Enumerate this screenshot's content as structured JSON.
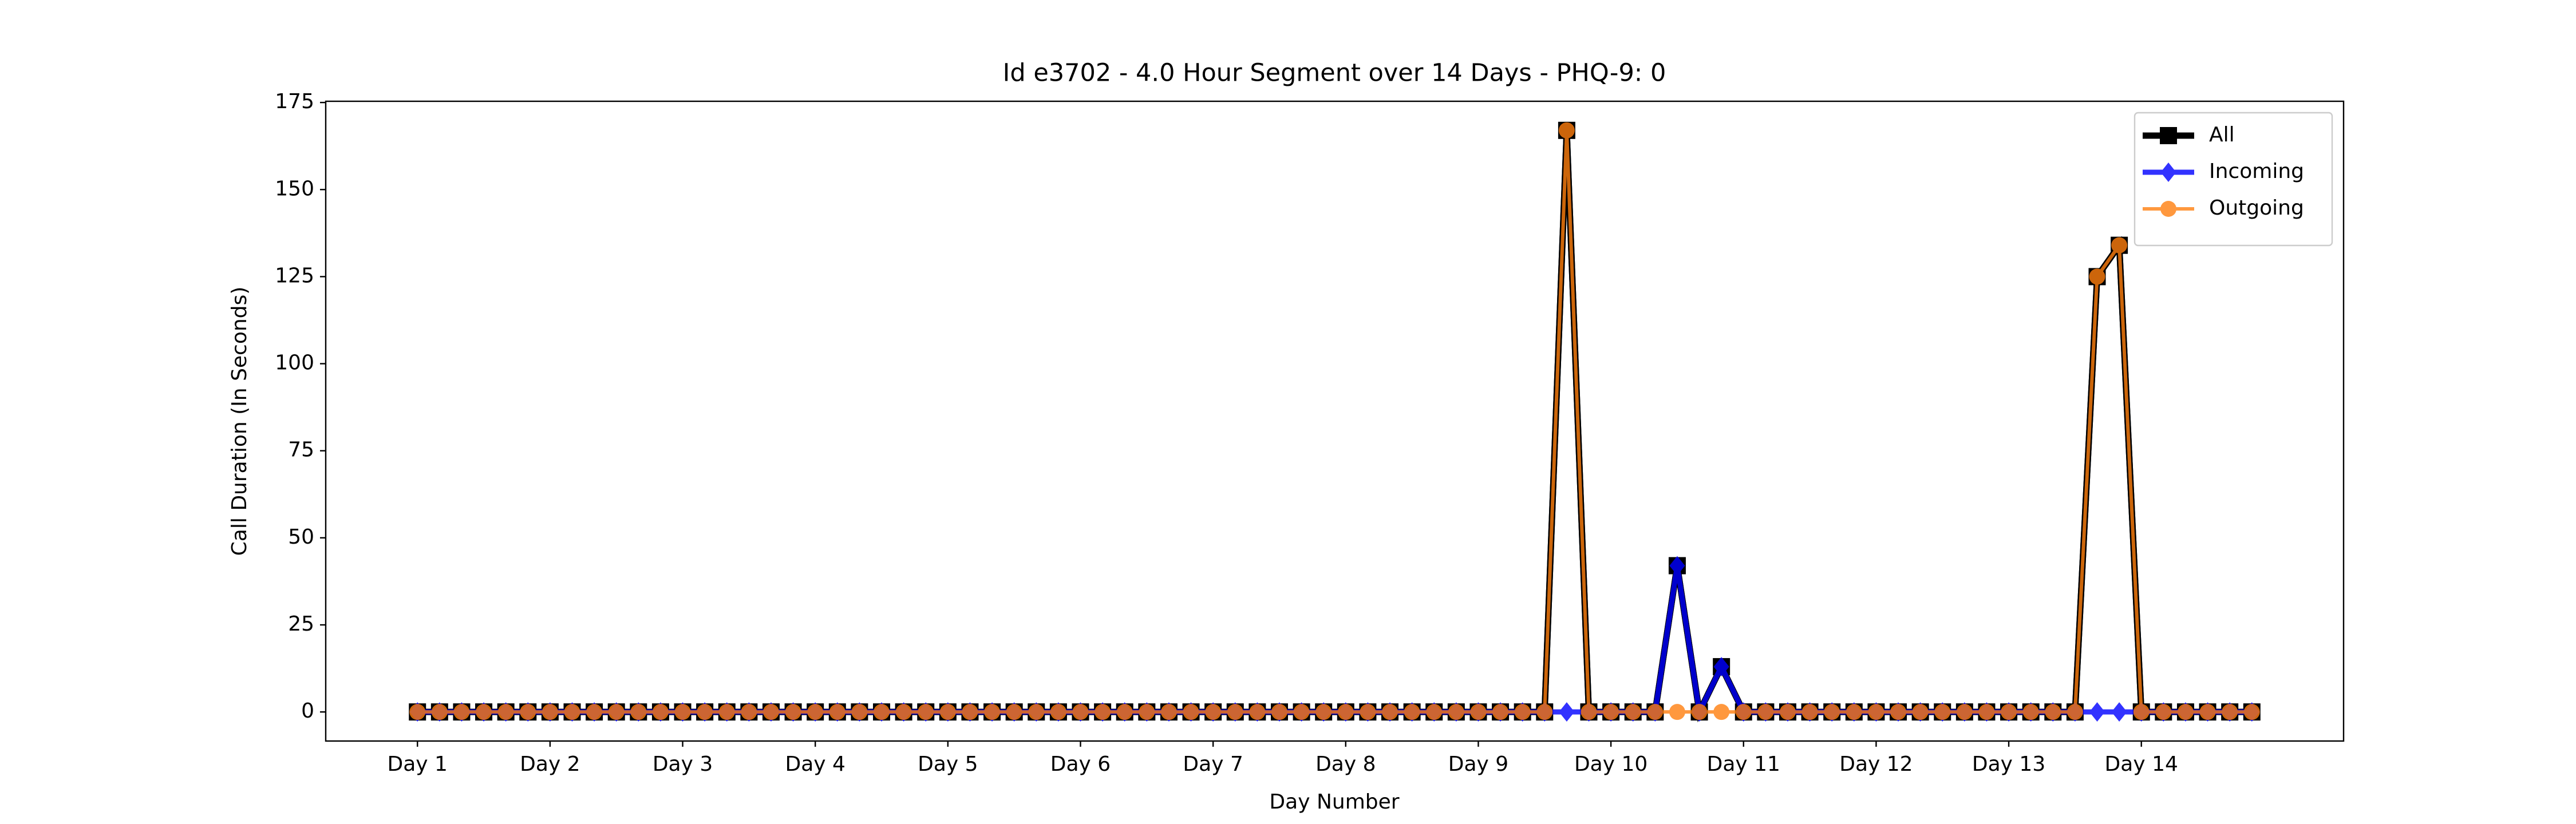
{
  "chart_data": {
    "type": "line",
    "title": "Id e3702 - 4.0 Hour Segment over 14 Days - PHQ-9: 0",
    "x_label": "Day Number",
    "y_label": "Call Duration (In Seconds)",
    "categories": [
      "Day 1",
      null,
      null,
      null,
      null,
      null,
      "Day 2",
      null,
      null,
      null,
      null,
      null,
      "Day 3",
      null,
      null,
      null,
      null,
      null,
      "Day 4",
      null,
      null,
      null,
      null,
      null,
      "Day 5",
      null,
      null,
      null,
      null,
      null,
      "Day 6",
      null,
      null,
      null,
      null,
      null,
      "Day 7",
      null,
      null,
      null,
      null,
      null,
      "Day 8",
      null,
      null,
      null,
      null,
      null,
      "Day 9",
      null,
      null,
      null,
      null,
      null,
      "Day 10",
      null,
      null,
      null,
      null,
      null,
      "Day 11",
      null,
      null,
      null,
      null,
      null,
      "Day 12",
      null,
      null,
      null,
      null,
      null,
      "Day 13",
      null,
      null,
      null,
      null,
      null,
      "Day 14",
      null,
      null,
      null,
      null,
      null
    ],
    "series": [
      {
        "name": "All",
        "color": "#000000",
        "marker": "square",
        "values": [
          0,
          0,
          0,
          0,
          0,
          0,
          0,
          0,
          0,
          0,
          0,
          0,
          0,
          0,
          0,
          0,
          0,
          0,
          0,
          0,
          0,
          0,
          0,
          0,
          0,
          0,
          0,
          0,
          0,
          0,
          0,
          0,
          0,
          0,
          0,
          0,
          0,
          0,
          0,
          0,
          0,
          0,
          0,
          0,
          0,
          0,
          0,
          0,
          0,
          0,
          0,
          0,
          167,
          0,
          0,
          0,
          0,
          42,
          0,
          13,
          0,
          0,
          0,
          0,
          0,
          0,
          0,
          0,
          0,
          0,
          0,
          0,
          0,
          0,
          0,
          0,
          125,
          134,
          0,
          0,
          0,
          0,
          0,
          0
        ]
      },
      {
        "name": "Incoming",
        "color": "#0000ff",
        "marker": "diamond",
        "values": [
          0,
          0,
          0,
          0,
          0,
          0,
          0,
          0,
          0,
          0,
          0,
          0,
          0,
          0,
          0,
          0,
          0,
          0,
          0,
          0,
          0,
          0,
          0,
          0,
          0,
          0,
          0,
          0,
          0,
          0,
          0,
          0,
          0,
          0,
          0,
          0,
          0,
          0,
          0,
          0,
          0,
          0,
          0,
          0,
          0,
          0,
          0,
          0,
          0,
          0,
          0,
          0,
          0,
          0,
          0,
          0,
          0,
          42,
          0,
          13,
          0,
          0,
          0,
          0,
          0,
          0,
          0,
          0,
          0,
          0,
          0,
          0,
          0,
          0,
          0,
          0,
          0,
          0,
          0,
          0,
          0,
          0,
          0,
          0
        ]
      },
      {
        "name": "Outgoing",
        "color": "#ff7f0e",
        "marker": "circle",
        "values": [
          0,
          0,
          0,
          0,
          0,
          0,
          0,
          0,
          0,
          0,
          0,
          0,
          0,
          0,
          0,
          0,
          0,
          0,
          0,
          0,
          0,
          0,
          0,
          0,
          0,
          0,
          0,
          0,
          0,
          0,
          0,
          0,
          0,
          0,
          0,
          0,
          0,
          0,
          0,
          0,
          0,
          0,
          0,
          0,
          0,
          0,
          0,
          0,
          0,
          0,
          0,
          0,
          167,
          0,
          0,
          0,
          0,
          0,
          0,
          0,
          0,
          0,
          0,
          0,
          0,
          0,
          0,
          0,
          0,
          0,
          0,
          0,
          0,
          0,
          0,
          0,
          125,
          134,
          0,
          0,
          0,
          0,
          0,
          0
        ]
      }
    ],
    "ylim": [
      -8.35,
      175.35
    ],
    "yticks": [
      0,
      25,
      50,
      75,
      100,
      125,
      150,
      175
    ],
    "legend": "upper right",
    "grid": false
  }
}
